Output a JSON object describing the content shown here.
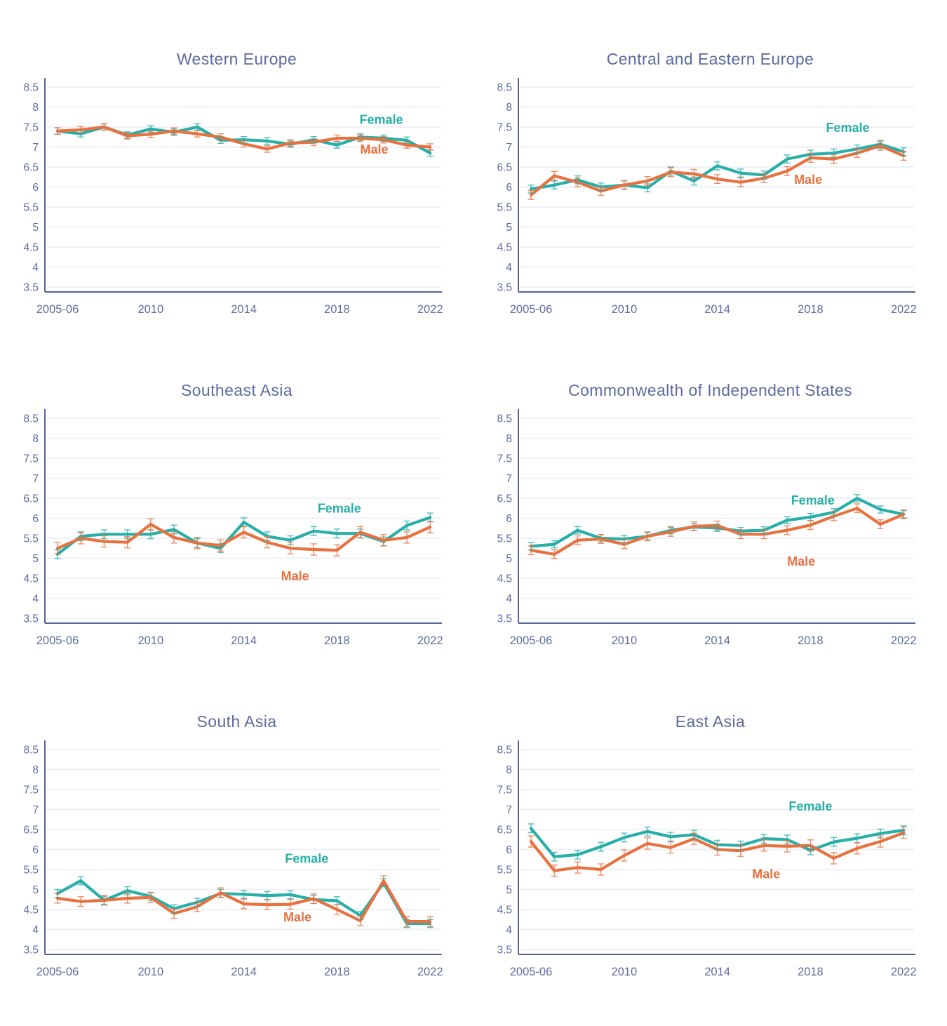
{
  "style": {
    "female_color": "#28afa8",
    "male_color": "#e87140",
    "title_color": "#5d6b9e",
    "axis_text_color": "#5d6b9e",
    "axis_line_color": "#54629a",
    "gridline_color": "#eef0f5",
    "background": "#ffffff"
  },
  "axes": {
    "y_tick_labels": [
      "8.5",
      "8",
      "7.5",
      "7",
      "6.5",
      "6",
      "5.5",
      "5",
      "4.5",
      "4",
      "3.5"
    ],
    "y_tick_values": [
      8.5,
      8.0,
      7.5,
      7.0,
      6.5,
      6.0,
      5.5,
      5.0,
      4.5,
      4.0,
      3.5
    ],
    "y_min": 3.5,
    "y_max": 8.5,
    "x_tick_labels": [
      "2005-06",
      "2010",
      "2014",
      "2018",
      "2022"
    ],
    "x_tick_indices": [
      0,
      4,
      8,
      12,
      16
    ],
    "n_points": 17
  },
  "series_labels": {
    "female": "Female",
    "male": "Male"
  },
  "chart_data": [
    {
      "type": "line",
      "title": "Western Europe",
      "series": [
        {
          "name": "Female",
          "err": 0.08,
          "values": [
            7.4,
            7.33,
            7.5,
            7.3,
            7.45,
            7.37,
            7.5,
            7.17,
            7.18,
            7.15,
            7.07,
            7.18,
            7.05,
            7.25,
            7.22,
            7.17,
            6.85
          ]
        },
        {
          "name": "Male",
          "err": 0.08,
          "values": [
            7.4,
            7.43,
            7.5,
            7.28,
            7.32,
            7.4,
            7.33,
            7.25,
            7.08,
            6.95,
            7.1,
            7.12,
            7.22,
            7.22,
            7.18,
            7.05,
            7.0
          ]
        }
      ],
      "label_positions": {
        "female": {
          "xi": 13.9,
          "y": 7.58
        },
        "male": {
          "xi": 13.6,
          "y": 6.83
        }
      }
    },
    {
      "type": "line",
      "title": "Central and Eastern Europe",
      "series": [
        {
          "name": "Female",
          "err": 0.1,
          "values": [
            5.95,
            6.05,
            6.18,
            6.0,
            6.05,
            5.98,
            6.4,
            6.15,
            6.53,
            6.35,
            6.3,
            6.7,
            6.82,
            6.85,
            6.95,
            7.07,
            6.88
          ]
        },
        {
          "name": "Male",
          "err": 0.11,
          "values": [
            5.8,
            6.28,
            6.12,
            5.9,
            6.05,
            6.15,
            6.37,
            6.33,
            6.2,
            6.12,
            6.22,
            6.4,
            6.73,
            6.7,
            6.85,
            7.03,
            6.78
          ]
        }
      ],
      "label_positions": {
        "female": {
          "xi": 13.6,
          "y": 7.38
        },
        "male": {
          "xi": 11.9,
          "y": 6.08
        }
      }
    },
    {
      "type": "line",
      "title": "Southeast Asia",
      "series": [
        {
          "name": "Female",
          "err": 0.11,
          "values": [
            5.1,
            5.55,
            5.6,
            5.6,
            5.6,
            5.72,
            5.38,
            5.25,
            5.9,
            5.55,
            5.45,
            5.68,
            5.62,
            5.62,
            5.42,
            5.82,
            6.02
          ]
        },
        {
          "name": "Male",
          "err": 0.14,
          "values": [
            5.25,
            5.5,
            5.42,
            5.4,
            5.85,
            5.52,
            5.38,
            5.32,
            5.65,
            5.4,
            5.25,
            5.22,
            5.2,
            5.65,
            5.45,
            5.52,
            5.78
          ]
        }
      ],
      "label_positions": {
        "female": {
          "xi": 12.1,
          "y": 6.14
        },
        "male": {
          "xi": 10.2,
          "y": 4.45
        }
      }
    },
    {
      "type": "line",
      "title": "Commonwealth of Independent States",
      "series": [
        {
          "name": "Female",
          "err": 0.09,
          "values": [
            5.3,
            5.35,
            5.7,
            5.5,
            5.48,
            5.55,
            5.7,
            5.78,
            5.76,
            5.68,
            5.7,
            5.95,
            6.03,
            6.15,
            6.5,
            6.22,
            6.1
          ]
        },
        {
          "name": "Male",
          "err": 0.11,
          "values": [
            5.2,
            5.1,
            5.45,
            5.48,
            5.35,
            5.55,
            5.66,
            5.8,
            5.82,
            5.6,
            5.6,
            5.7,
            5.83,
            6.05,
            6.25,
            5.85,
            6.1
          ]
        }
      ],
      "label_positions": {
        "female": {
          "xi": 12.1,
          "y": 6.34
        },
        "male": {
          "xi": 11.6,
          "y": 4.82
        }
      }
    },
    {
      "type": "line",
      "title": "South Asia",
      "series": [
        {
          "name": "Female",
          "err": 0.1,
          "values": [
            4.9,
            5.22,
            4.73,
            4.97,
            4.83,
            4.52,
            4.68,
            4.9,
            4.88,
            4.85,
            4.87,
            4.75,
            4.72,
            4.35,
            5.17,
            4.15,
            4.15
          ]
        },
        {
          "name": "Male",
          "err": 0.12,
          "values": [
            4.78,
            4.7,
            4.73,
            4.78,
            4.8,
            4.4,
            4.57,
            4.92,
            4.64,
            4.62,
            4.63,
            4.77,
            4.5,
            4.22,
            5.22,
            4.2,
            4.2
          ]
        }
      ],
      "label_positions": {
        "female": {
          "xi": 10.7,
          "y": 5.67
        },
        "male": {
          "xi": 10.3,
          "y": 4.2
        }
      }
    },
    {
      "type": "line",
      "title": "East Asia",
      "series": [
        {
          "name": "Female",
          "err": 0.11,
          "values": [
            6.53,
            5.82,
            5.87,
            6.07,
            6.3,
            6.45,
            6.32,
            6.37,
            6.12,
            6.1,
            6.27,
            6.25,
            5.98,
            6.19,
            6.28,
            6.4,
            6.48
          ]
        },
        {
          "name": "Male",
          "err": 0.14,
          "values": [
            6.2,
            5.47,
            5.55,
            5.5,
            5.85,
            6.15,
            6.05,
            6.27,
            6.0,
            5.97,
            6.1,
            6.08,
            6.1,
            5.78,
            6.03,
            6.2,
            6.42
          ]
        }
      ],
      "label_positions": {
        "female": {
          "xi": 12.0,
          "y": 6.97
        },
        "male": {
          "xi": 10.1,
          "y": 5.28
        }
      }
    }
  ]
}
